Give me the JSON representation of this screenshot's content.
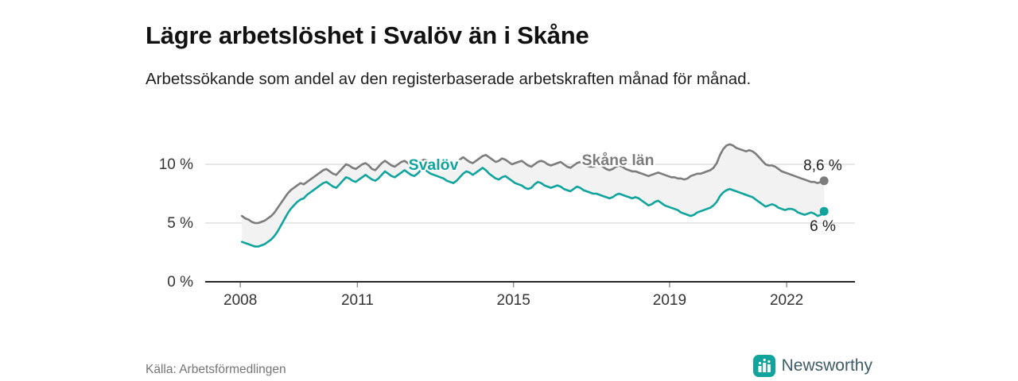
{
  "header": {
    "title": "Lägre arbetslöshet i Svalöv än i Skåne",
    "subtitle": "Arbetssökande som andel av den registerbaserade arbetskraften månad för månad."
  },
  "footer": {
    "source": "Källa: Arbetsförmedlingen",
    "brand": "Newsworthy"
  },
  "colors": {
    "svalov": "#10a49c",
    "skane": "#7c7c7c",
    "grid": "#d9d9d9",
    "axis": "#262626",
    "axis_text": "#333333",
    "fill_between": "#f2f2f2",
    "end_label_text": "#222222",
    "brand_teal": "#10a49c"
  },
  "chart_data": {
    "type": "line",
    "title": "Lägre arbetslöshet i Svalöv än i Skåne",
    "xlabel": "",
    "ylabel": "",
    "x_start_year": 2008,
    "x_frequency": "monthly",
    "xlim": [
      2007.1,
      2023.75
    ],
    "ylim": [
      0,
      12.5
    ],
    "x_ticks": [
      2008,
      2011,
      2015,
      2019,
      2022
    ],
    "y_ticks": [
      0,
      5,
      10
    ],
    "y_tick_labels": [
      "0 %",
      "5 %",
      "10 %"
    ],
    "grid": "horizontal",
    "legend_position": "inline-labels",
    "series": [
      {
        "id": "skane-lan",
        "name": "Skåne län",
        "color": "#7c7c7c",
        "end_label": "8,6 %",
        "end_value": 8.6,
        "values": [
          5.6,
          5.4,
          5.3,
          5.1,
          5.0,
          5.0,
          5.1,
          5.2,
          5.4,
          5.6,
          5.9,
          6.3,
          6.7,
          7.1,
          7.5,
          7.8,
          8.0,
          8.2,
          8.4,
          8.3,
          8.5,
          8.7,
          8.9,
          9.1,
          9.3,
          9.5,
          9.6,
          9.4,
          9.2,
          9.1,
          9.4,
          9.7,
          10.0,
          9.9,
          9.7,
          9.6,
          9.8,
          10.0,
          10.1,
          9.9,
          9.6,
          9.5,
          9.8,
          10.1,
          10.3,
          10.1,
          9.9,
          9.8,
          10.0,
          10.2,
          10.3,
          10.1,
          9.9,
          9.8,
          10.0,
          10.3,
          10.4,
          10.3,
          10.1,
          10.0,
          10.2,
          10.3,
          10.4,
          10.2,
          10.0,
          9.9,
          10.1,
          10.4,
          10.6,
          10.4,
          10.2,
          10.1,
          10.3,
          10.5,
          10.7,
          10.8,
          10.6,
          10.4,
          10.2,
          10.3,
          10.5,
          10.4,
          10.2,
          10.0,
          10.1,
          10.2,
          10.3,
          10.1,
          9.9,
          9.8,
          10.0,
          10.2,
          10.3,
          10.2,
          10.0,
          9.9,
          10.0,
          10.1,
          10.2,
          10.0,
          9.8,
          9.7,
          9.9,
          10.1,
          10.2,
          10.0,
          9.9,
          9.8,
          9.8,
          9.9,
          10.0,
          9.8,
          9.6,
          9.5,
          9.6,
          9.8,
          9.9,
          9.8,
          9.6,
          9.5,
          9.4,
          9.4,
          9.3,
          9.2,
          9.1,
          9.0,
          9.1,
          9.2,
          9.3,
          9.2,
          9.1,
          9.0,
          8.9,
          8.9,
          8.8,
          8.8,
          8.7,
          8.8,
          9.0,
          9.1,
          9.2,
          9.2,
          9.3,
          9.4,
          9.5,
          9.7,
          10.1,
          10.8,
          11.3,
          11.6,
          11.7,
          11.6,
          11.4,
          11.3,
          11.2,
          11.1,
          11.2,
          11.1,
          10.9,
          10.6,
          10.3,
          10.0,
          9.9,
          9.9,
          9.8,
          9.6,
          9.4,
          9.3,
          9.2,
          9.1,
          9.0,
          8.9,
          8.8,
          8.7,
          8.6,
          8.5,
          8.5,
          8.4,
          8.5,
          8.6
        ]
      },
      {
        "id": "svalov",
        "name": "Svalöv",
        "color": "#10a49c",
        "end_label": "6 %",
        "end_value": 6.0,
        "values": [
          3.4,
          3.3,
          3.2,
          3.1,
          3.0,
          3.0,
          3.1,
          3.2,
          3.4,
          3.6,
          3.9,
          4.3,
          4.8,
          5.3,
          5.8,
          6.2,
          6.5,
          6.8,
          7.0,
          7.1,
          7.4,
          7.6,
          7.8,
          8.0,
          8.2,
          8.4,
          8.5,
          8.3,
          8.1,
          8.0,
          8.3,
          8.6,
          8.9,
          8.8,
          8.6,
          8.5,
          8.7,
          8.9,
          9.1,
          8.9,
          8.7,
          8.6,
          8.8,
          9.1,
          9.4,
          9.2,
          9.0,
          8.9,
          9.1,
          9.3,
          9.5,
          9.3,
          9.1,
          9.0,
          9.2,
          9.5,
          9.6,
          9.4,
          9.2,
          9.1,
          9.0,
          8.9,
          8.8,
          8.6,
          8.5,
          8.4,
          8.6,
          8.9,
          9.2,
          9.4,
          9.3,
          9.1,
          9.3,
          9.5,
          9.7,
          9.5,
          9.2,
          9.0,
          8.8,
          8.7,
          8.9,
          9.0,
          8.8,
          8.6,
          8.4,
          8.3,
          8.2,
          8.0,
          7.9,
          8.0,
          8.3,
          8.5,
          8.4,
          8.2,
          8.1,
          8.0,
          8.1,
          8.2,
          8.1,
          7.9,
          7.8,
          7.7,
          7.9,
          8.1,
          8.0,
          7.8,
          7.7,
          7.6,
          7.5,
          7.5,
          7.4,
          7.3,
          7.2,
          7.1,
          7.2,
          7.4,
          7.5,
          7.4,
          7.3,
          7.2,
          7.1,
          7.2,
          7.1,
          6.9,
          6.7,
          6.5,
          6.6,
          6.8,
          6.9,
          6.7,
          6.5,
          6.4,
          6.3,
          6.2,
          6.1,
          5.9,
          5.8,
          5.7,
          5.6,
          5.7,
          5.9,
          6.0,
          6.1,
          6.2,
          6.3,
          6.5,
          6.8,
          7.3,
          7.6,
          7.8,
          7.9,
          7.8,
          7.7,
          7.6,
          7.5,
          7.4,
          7.3,
          7.2,
          7.0,
          6.8,
          6.6,
          6.4,
          6.5,
          6.6,
          6.5,
          6.3,
          6.2,
          6.1,
          6.2,
          6.2,
          6.1,
          5.9,
          5.8,
          5.7,
          5.8,
          5.9,
          5.8,
          5.6,
          5.7,
          6.0
        ]
      }
    ]
  }
}
